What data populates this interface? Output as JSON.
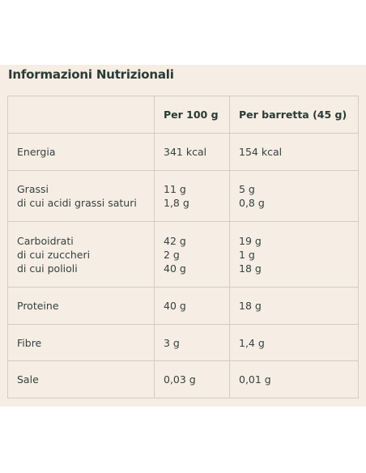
{
  "title": "Informazioni Nutrizionali",
  "headers": [
    "",
    "Per 100 g",
    "Per barretta (45 g)"
  ],
  "rows": [
    {
      "labels": [
        "Energia"
      ],
      "per100": [
        "341 kcal"
      ],
      "perBar": [
        "154 kcal"
      ]
    },
    {
      "labels": [
        "Grassi",
        "di cui acidi grassi saturi"
      ],
      "per100": [
        "11 g",
        "1,8 g"
      ],
      "perBar": [
        "5 g",
        "0,8 g"
      ]
    },
    {
      "labels": [
        "Carboidrati",
        "di cui zuccheri",
        "di cui polioli"
      ],
      "per100": [
        "42 g",
        "2 g",
        "40 g"
      ],
      "perBar": [
        "19 g",
        "1 g",
        "18 g"
      ]
    },
    {
      "labels": [
        "Proteine"
      ],
      "per100": [
        "40 g"
      ],
      "perBar": [
        "18 g"
      ]
    },
    {
      "labels": [
        "Fibre"
      ],
      "per100": [
        "3 g"
      ],
      "perBar": [
        "1,4 g"
      ]
    },
    {
      "labels": [
        "Sale"
      ],
      "per100": [
        "0,03 g"
      ],
      "perBar": [
        "0,01 g"
      ]
    }
  ]
}
